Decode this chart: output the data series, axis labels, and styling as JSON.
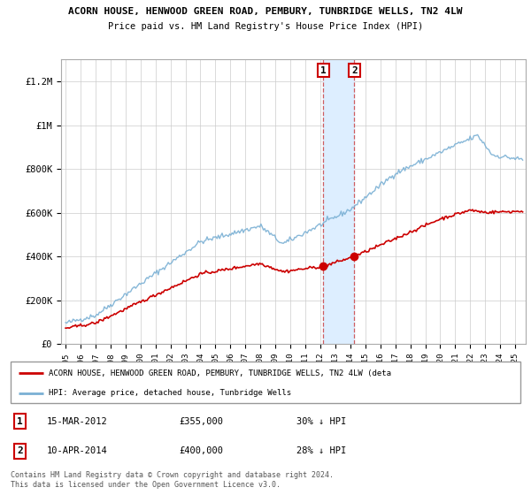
{
  "title": "ACORN HOUSE, HENWOOD GREEN ROAD, PEMBURY, TUNBRIDGE WELLS, TN2 4LW",
  "subtitle": "Price paid vs. HM Land Registry's House Price Index (HPI)",
  "legend_label_red": "ACORN HOUSE, HENWOOD GREEN ROAD, PEMBURY, TUNBRIDGE WELLS, TN2 4LW (deta",
  "legend_label_blue": "HPI: Average price, detached house, Tunbridge Wells",
  "footnote": "Contains HM Land Registry data © Crown copyright and database right 2024.\nThis data is licensed under the Open Government Licence v3.0.",
  "sale1_date": "15-MAR-2012",
  "sale1_price": "£355,000",
  "sale1_hpi": "30% ↓ HPI",
  "sale1_year": 2012.2,
  "sale1_value": 355000,
  "sale2_date": "10-APR-2014",
  "sale2_price": "£400,000",
  "sale2_hpi": "28% ↓ HPI",
  "sale2_year": 2014.27,
  "sale2_value": 400000,
  "ylim": [
    0,
    1300000
  ],
  "yticks": [
    0,
    200000,
    400000,
    600000,
    800000,
    1000000,
    1200000
  ],
  "ytick_labels": [
    "£0",
    "£200K",
    "£400K",
    "£600K",
    "£800K",
    "£1M",
    "£1.2M"
  ],
  "background_color": "#ffffff",
  "grid_color": "#cccccc",
  "red_color": "#cc0000",
  "blue_color": "#7ab0d4",
  "highlight_color": "#ddeeff"
}
